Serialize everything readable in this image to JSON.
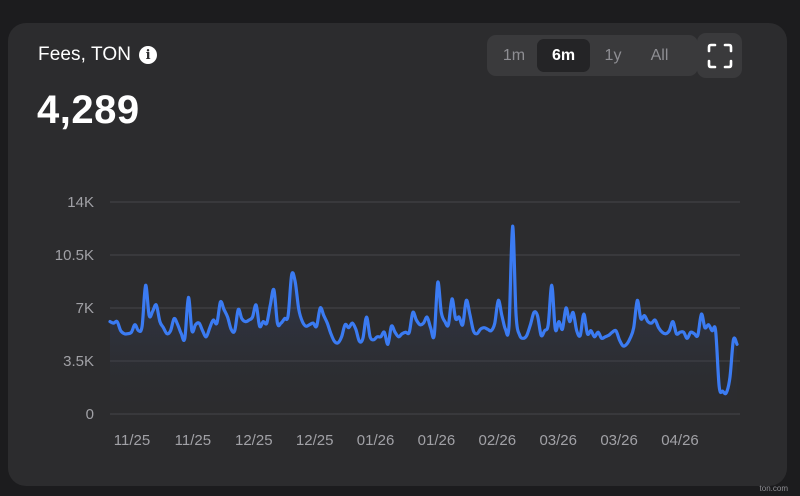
{
  "header": {
    "title": "Fees, TON",
    "value": "4,289"
  },
  "range_selector": {
    "options": [
      "1m",
      "6m",
      "1y",
      "All"
    ],
    "selected": "6m"
  },
  "icons": {
    "info": "info-icon",
    "expand": "expand-fullscreen-icon"
  },
  "watermark": "ton.com",
  "colors": {
    "line": "#3b7bf2",
    "background": "#2c2c2e"
  },
  "chart_data": {
    "type": "area",
    "ylim": [
      0,
      14000
    ],
    "yticks": [
      {
        "value": 0,
        "label": "0"
      },
      {
        "value": 3500,
        "label": "3.5K"
      },
      {
        "value": 7000,
        "label": "7K"
      },
      {
        "value": 10500,
        "label": "10.5K"
      },
      {
        "value": 14000,
        "label": "14K"
      }
    ],
    "xtick_labels": [
      "11/25",
      "11/25",
      "12/25",
      "12/25",
      "01/26",
      "01/26",
      "02/26",
      "03/26",
      "03/26",
      "04/26"
    ],
    "grid": true,
    "series": [
      {
        "values": [
          6100,
          6000,
          6100,
          5500,
          5300,
          5300,
          5400,
          5900,
          5500,
          5800,
          8500,
          6500,
          6800,
          7200,
          6100,
          5700,
          5300,
          5500,
          6300,
          5900,
          5300,
          5000,
          7700,
          5500,
          5900,
          6000,
          5500,
          5100,
          5700,
          6200,
          6000,
          7400,
          6900,
          6400,
          5600,
          5500,
          6900,
          6300,
          6100,
          6200,
          6400,
          7200,
          5800,
          6100,
          6000,
          7200,
          8200,
          6000,
          6000,
          6300,
          6500,
          9200,
          8700,
          6900,
          6100,
          5800,
          5900,
          6000,
          5800,
          7000,
          6500,
          6000,
          5300,
          4800,
          4700,
          5100,
          5900,
          5700,
          6000,
          5600,
          4800,
          5000,
          6400,
          5100,
          4900,
          5100,
          5100,
          5400,
          4600,
          5800,
          5400,
          5100,
          5300,
          5400,
          5400,
          6700,
          6200,
          5900,
          6000,
          6400,
          5700,
          5200,
          8700,
          6700,
          6100,
          5900,
          7600,
          6300,
          6400,
          5900,
          7500,
          6600,
          5500,
          5300,
          5600,
          5700,
          5600,
          5500,
          6000,
          7500,
          6500,
          5600,
          5800,
          12400,
          6500,
          5200,
          5000,
          5200,
          5900,
          6700,
          6500,
          5200,
          5500,
          5900,
          8500,
          5600,
          6100,
          5600,
          7000,
          6100,
          6700,
          5500,
          5200,
          6600,
          5300,
          5500,
          5100,
          5400,
          5000,
          5100,
          5200,
          5400,
          5500,
          4900,
          4500,
          4600,
          5000,
          5700,
          7500,
          6300,
          6500,
          6100,
          6000,
          6200,
          5700,
          5400,
          5300,
          5500,
          6100,
          5300,
          5400,
          5400,
          5000,
          5400,
          5300,
          5200,
          6600,
          5700,
          5900,
          5500,
          5500,
          1800,
          1500,
          1400,
          2400,
          4900,
          4600
        ]
      }
    ]
  }
}
